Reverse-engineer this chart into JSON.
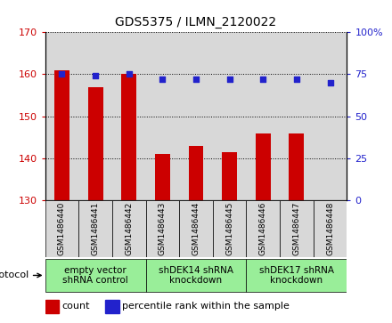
{
  "title": "GDS5375 / ILMN_2120022",
  "samples": [
    "GSM1486440",
    "GSM1486441",
    "GSM1486442",
    "GSM1486443",
    "GSM1486444",
    "GSM1486445",
    "GSM1486446",
    "GSM1486447",
    "GSM1486448"
  ],
  "counts": [
    161,
    157,
    160,
    141,
    143,
    141.5,
    146,
    146,
    130
  ],
  "percentiles": [
    75,
    74,
    75,
    72,
    72,
    72,
    72,
    72,
    70
  ],
  "ylim_left": [
    130,
    170
  ],
  "ylim_right": [
    0,
    100
  ],
  "yticks_left": [
    130,
    140,
    150,
    160,
    170
  ],
  "yticks_right": [
    0,
    25,
    50,
    75,
    100
  ],
  "bar_color": "#cc0000",
  "dot_color": "#2222cc",
  "protocol_groups": [
    {
      "label": "empty vector\nshRNA control",
      "start": 0,
      "end": 3,
      "color": "#99ee99"
    },
    {
      "label": "shDEK14 shRNA\nknockdown",
      "start": 3,
      "end": 6,
      "color": "#99ee99"
    },
    {
      "label": "shDEK17 shRNA\nknockdown",
      "start": 6,
      "end": 9,
      "color": "#99ee99"
    }
  ],
  "protocol_label": "protocol",
  "legend_count_label": "count",
  "legend_percentile_label": "percentile rank within the sample",
  "cell_bg_color": "#d8d8d8",
  "plot_bg_color": "#ffffff",
  "title_fontsize": 10,
  "tick_fontsize": 8,
  "sample_fontsize": 6.5,
  "protocol_fontsize": 7.5,
  "legend_fontsize": 8
}
